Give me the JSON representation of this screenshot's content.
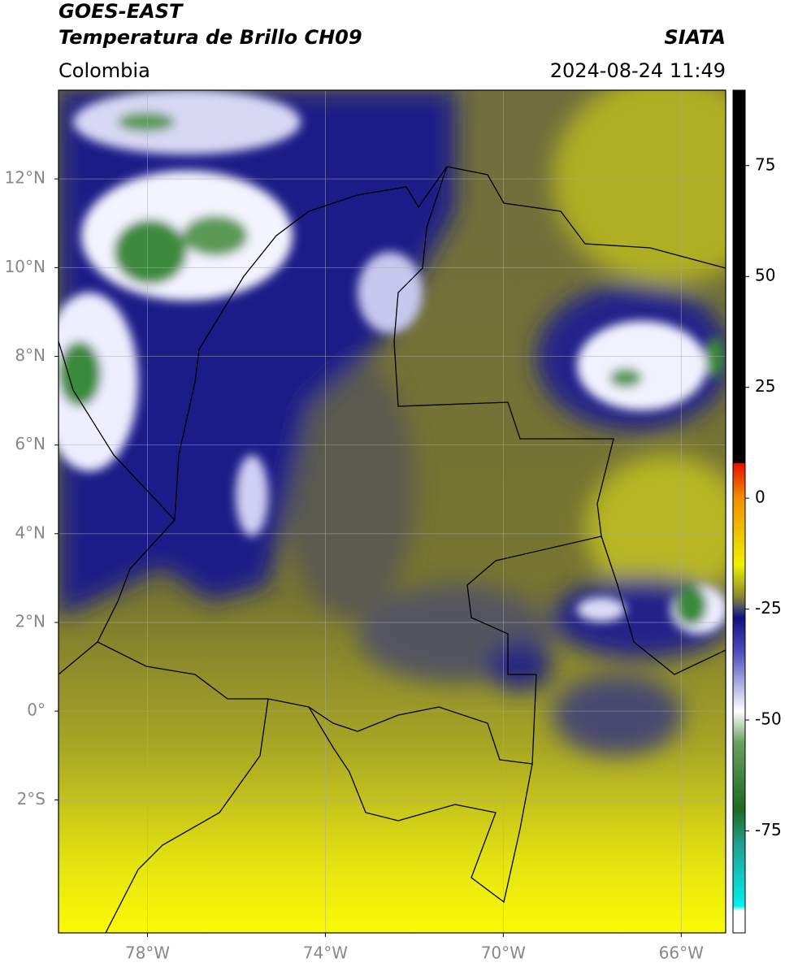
{
  "header": {
    "title_line1": "GOES-EAST",
    "title_line2": "Temperatura de Brillo CH09",
    "source": "SIATA",
    "region": "Colombia",
    "timestamp": "2024-08-24 11:49"
  },
  "chart_data": {
    "type": "map",
    "xlim": [
      -80,
      -65
    ],
    "ylim": [
      -5,
      14
    ],
    "xticks": [
      {
        "value": -78,
        "label": "78°W"
      },
      {
        "value": -74,
        "label": "74°W"
      },
      {
        "value": -70,
        "label": "70°W"
      },
      {
        "value": -66,
        "label": "66°W"
      }
    ],
    "yticks": [
      {
        "value": 12,
        "label": "12°N"
      },
      {
        "value": 10,
        "label": "10°N"
      },
      {
        "value": 8,
        "label": "8°N"
      },
      {
        "value": 6,
        "label": "6°N"
      },
      {
        "value": 4,
        "label": "4°N"
      },
      {
        "value": 2,
        "label": "2°N"
      },
      {
        "value": 0,
        "label": "0°"
      },
      {
        "value": -2,
        "label": "2°S"
      }
    ],
    "grid": true,
    "colorbar": {
      "lim": [
        -98,
        92
      ],
      "ticks": [
        -75,
        -50,
        -25,
        0,
        25,
        50,
        75
      ]
    }
  }
}
